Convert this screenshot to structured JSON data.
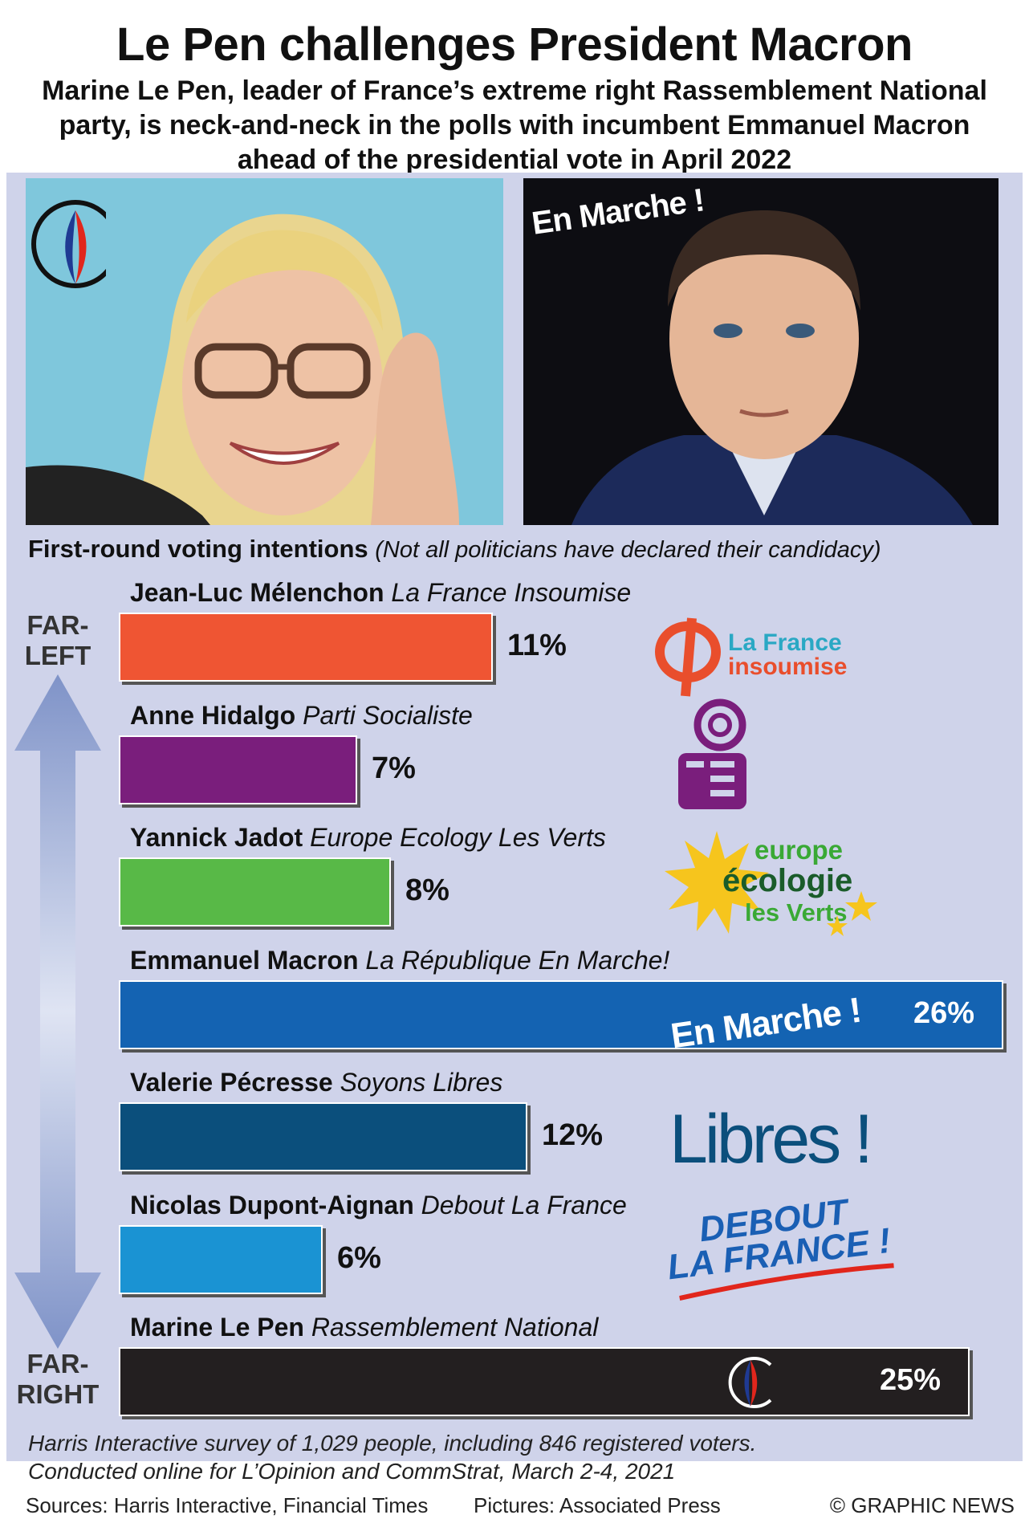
{
  "title": "Le Pen challenges President Macron",
  "subtitle": "Marine Le Pen, leader of France’s extreme right Rassemblement National party, is neck-and-neck in the polls with incumbent Emmanuel Macron ahead of the presidential vote in April 2022",
  "photos": {
    "left_alt": "Marine Le Pen photo",
    "right_overlay": "En Marche !"
  },
  "chart_heading": {
    "bold": "First-round voting intentions",
    "note": "(Not all politicians have declared their candidacy)"
  },
  "axis": {
    "top": "FAR-LEFT",
    "bottom": "FAR-RIGHT",
    "top_line1": "FAR-",
    "top_line2": "LEFT",
    "bottom_line1": "FAR-",
    "bottom_line2": "RIGHT"
  },
  "chart_data": {
    "type": "bar",
    "orientation": "horizontal",
    "xlim": [
      0,
      26
    ],
    "categories": [
      "Jean-Luc Mélenchon",
      "Anne Hidalgo",
      "Yannick Jadot",
      "Emmanuel Macron",
      "Valerie Pécresse",
      "Nicolas Dupont-Aignan",
      "Marine Le Pen"
    ],
    "parties": [
      "La France Insoumise",
      "Parti Socialiste",
      "Europe Ecology Les Verts",
      "La République En Marche!",
      "Soyons Libres",
      "Debout La France",
      "Rassemblement National"
    ],
    "values": [
      11,
      7,
      8,
      26,
      12,
      6,
      25
    ],
    "value_labels": [
      "11%",
      "7%",
      "8%",
      "26%",
      "12%",
      "6%",
      "25%"
    ],
    "colors": [
      "#ef5533",
      "#7a1e7c",
      "#58b947",
      "#1463b2",
      "#0b4f7c",
      "#1a93d3",
      "#231f20"
    ]
  },
  "logos": {
    "lfi_line1": "La France",
    "lfi_line2": "insoumise",
    "eelv_line1": "europe",
    "eelv_line2": "écologie",
    "eelv_line3": "les Verts",
    "enmarche": "En Marche !",
    "libres": "Libres !",
    "dlf_line1": "DEBOUT",
    "dlf_line2": "LA FRANCE !"
  },
  "footnote_line1": "Harris Interactive survey of 1,029 people, including 846 registered voters.",
  "footnote_line2": "Conducted online for L’Opinion and CommStrat, March 2-4, 2021",
  "footer": {
    "sources": "Sources: Harris Interactive, Financial Times",
    "pictures": "Pictures: Associated Press",
    "credit": "© GRAPHIC NEWS"
  }
}
